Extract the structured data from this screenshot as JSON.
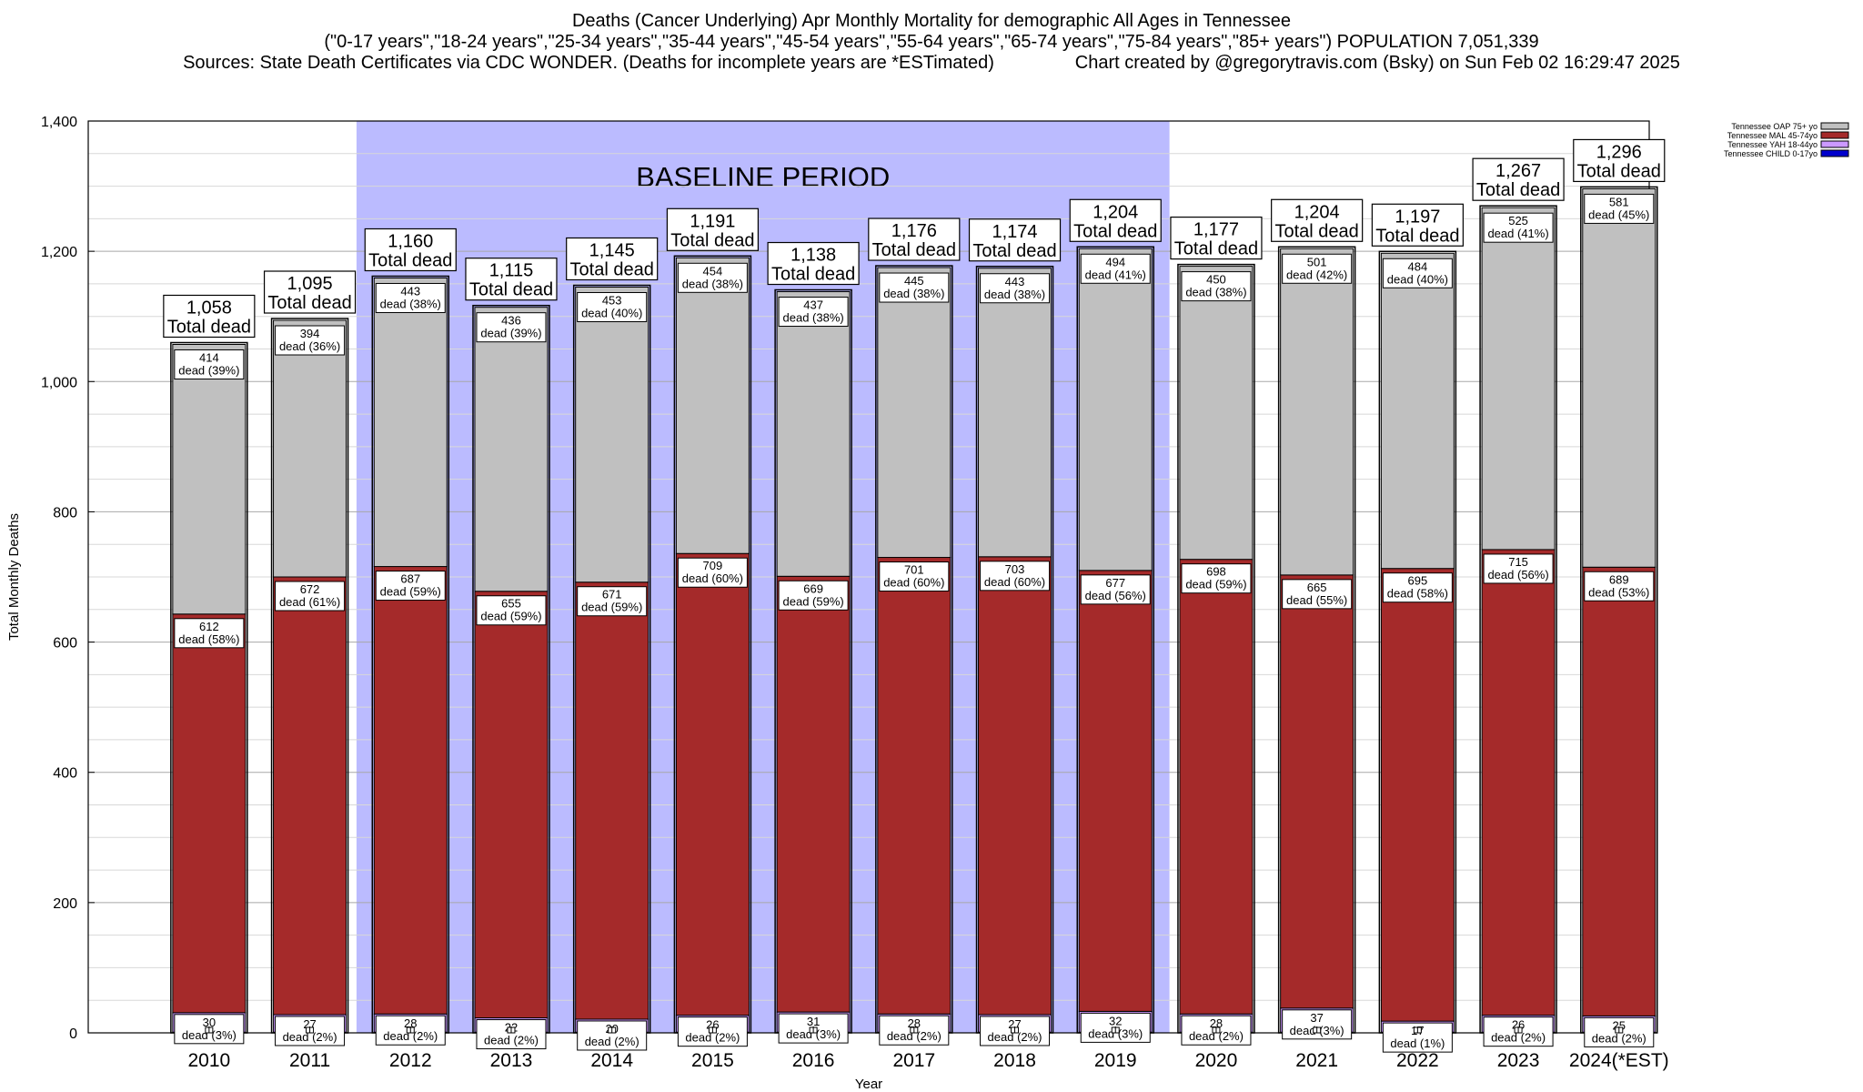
{
  "header": {
    "title": "Deaths (Cancer Underlying) Apr Monthly Mortality for demographic All Ages in Tennessee",
    "subtitle": "(\"0-17 years\",\"18-24 years\",\"25-34 years\",\"35-44 years\",\"45-54 years\",\"55-64 years\",\"65-74 years\",\"75-84 years\",\"85+ years\") POPULATION 7,051,339",
    "sources": "Sources: State Death Certificates via CDC WONDER. (Deaths for incomplete years are *ESTimated)",
    "credit": "Chart created by @gregorytravis.com (Bsky) on Sun Feb 02 16:29:47 2025"
  },
  "chart_data": {
    "type": "bar",
    "stacked": true,
    "xlabel": "Year",
    "ylabel": "Total Monthly Deaths",
    "ylim": [
      0,
      1400
    ],
    "yticks": [
      0,
      200,
      400,
      600,
      800,
      1000,
      1200,
      1400
    ],
    "ytick_labels": [
      "0",
      "200",
      "400",
      "600",
      "800",
      "1,000",
      "1,200",
      "1,400"
    ],
    "grid": true,
    "legend_position": "top-right",
    "categories": [
      "2010",
      "2011",
      "2012",
      "2013",
      "2014",
      "2015",
      "2016",
      "2017",
      "2018",
      "2019",
      "2020",
      "2021",
      "2022",
      "2023",
      "2024(*EST)"
    ],
    "baseline_period": {
      "label": "BASELINE PERIOD",
      "from": "2012",
      "to": "2019",
      "color": "#bbbbff"
    },
    "total_suffix": "Total dead",
    "totals": [
      "1,058",
      "1,095",
      "1,160",
      "1,115",
      "1,145",
      "1,191",
      "1,138",
      "1,176",
      "1,174",
      "1,204",
      "1,177",
      "1,204",
      "1,197",
      "1,267",
      "1,296"
    ],
    "series": [
      {
        "name": "Tennessee CHILD 0-17yo",
        "color": "#0000cc",
        "values": [
          1,
          1,
          1,
          1,
          1,
          1,
          1,
          1,
          1,
          1,
          1,
          1,
          1,
          1,
          1
        ]
      },
      {
        "name": "Tennessee YAH 18-44yo",
        "color": "#cc99ff",
        "values": [
          30,
          27,
          28,
          22,
          20,
          26,
          31,
          28,
          27,
          32,
          28,
          37,
          17,
          26,
          25
        ],
        "labels": [
          "dead (3%)",
          "dead (2%)",
          "dead (2%)",
          "dead (2%)",
          "dead (2%)",
          "dead (2%)",
          "dead (3%)",
          "dead (2%)",
          "dead (2%)",
          "dead (3%)",
          "dead (2%)",
          "dead (3%)",
          "dead (1%)",
          "dead (2%)",
          "dead (2%)"
        ]
      },
      {
        "name": "Tennessee MAL 45-74yo",
        "color": "#a52a2a",
        "values": [
          612,
          672,
          687,
          655,
          671,
          709,
          669,
          701,
          703,
          677,
          698,
          665,
          695,
          715,
          689
        ],
        "labels": [
          "dead (58%)",
          "dead (61%)",
          "dead (59%)",
          "dead (59%)",
          "dead (59%)",
          "dead (60%)",
          "dead (59%)",
          "dead (60%)",
          "dead (60%)",
          "dead (56%)",
          "dead (59%)",
          "dead (55%)",
          "dead (58%)",
          "dead (56%)",
          "dead (53%)"
        ]
      },
      {
        "name": "Tennessee OAP 75+ yo",
        "color": "#c0c0c0",
        "values": [
          414,
          394,
          443,
          436,
          453,
          454,
          437,
          445,
          443,
          494,
          450,
          501,
          484,
          525,
          581
        ],
        "labels": [
          "dead (39%)",
          "dead (36%)",
          "dead (38%)",
          "dead (39%)",
          "dead (40%)",
          "dead (38%)",
          "dead (38%)",
          "dead (38%)",
          "dead (38%)",
          "dead (41%)",
          "dead (38%)",
          "dead (42%)",
          "dead (40%)",
          "dead (41%)",
          "dead (45%)"
        ]
      }
    ]
  }
}
